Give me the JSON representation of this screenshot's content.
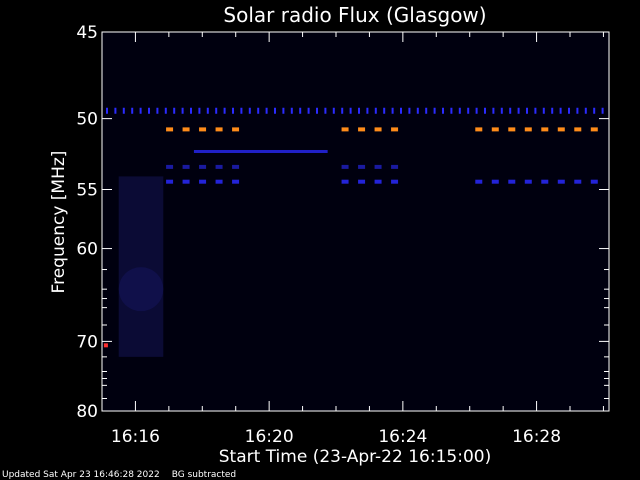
{
  "chart_data": {
    "type": "heatmap",
    "title": "Solar radio Flux (Glasgow)",
    "xlabel": "Start Time (23-Apr-22 16:15:00)",
    "ylabel": "Frequency [MHz]",
    "x_start": "16:15:00",
    "x_end": "16:30:10",
    "x_ticks": [
      "16:16",
      "16:20",
      "16:24",
      "16:28"
    ],
    "y_ticks": [
      45,
      50,
      55,
      60,
      70,
      80
    ],
    "ylim": [
      45,
      80
    ],
    "y_scale": "reciprocal",
    "features": [
      {
        "kind": "interference-band",
        "color": "#2b2bff",
        "freq_mhz": 49.5,
        "start": "16:15:00",
        "end": "16:30:10",
        "style": "dotted"
      },
      {
        "kind": "interference-band",
        "color": "#ff8c1a",
        "freq_mhz": 50.7,
        "segments": [
          [
            "16:16:55",
            "16:19:15"
          ],
          [
            "16:22:10",
            "16:24:00"
          ],
          [
            "16:26:10",
            "16:30:10"
          ]
        ],
        "style": "dashed"
      },
      {
        "kind": "interference-band",
        "color": "#2020c8",
        "freq_mhz": 52.2,
        "segments": [
          [
            "16:17:45",
            "16:21:45"
          ]
        ],
        "style": "solid"
      },
      {
        "kind": "interference-band",
        "color": "#1a1aa0",
        "freq_mhz": 53.3,
        "segments": [
          [
            "16:16:55",
            "16:19:15"
          ],
          [
            "16:22:10",
            "16:24:00"
          ]
        ],
        "style": "dashed"
      },
      {
        "kind": "interference-band",
        "color": "#2323d8",
        "freq_mhz": 54.4,
        "segments": [
          [
            "16:16:55",
            "16:19:15"
          ],
          [
            "16:22:10",
            "16:24:00"
          ],
          [
            "16:26:10",
            "16:30:10"
          ]
        ],
        "style": "dashed"
      },
      {
        "kind": "broadband-enhancement",
        "color": "#0c0c3a",
        "start": "16:15:30",
        "end": "16:16:50",
        "freq_range": [
          54,
          72
        ]
      },
      {
        "kind": "spot",
        "color": "#ff3030",
        "freq_mhz": 70.5,
        "time": "16:15:07"
      }
    ],
    "colors": {
      "background": "#000000",
      "axes": "#ffffff",
      "text": "#ffffff"
    }
  },
  "footer": {
    "updated": "Updated Sat Apr 23 16:46:28 2022",
    "note": "BG subtracted"
  }
}
